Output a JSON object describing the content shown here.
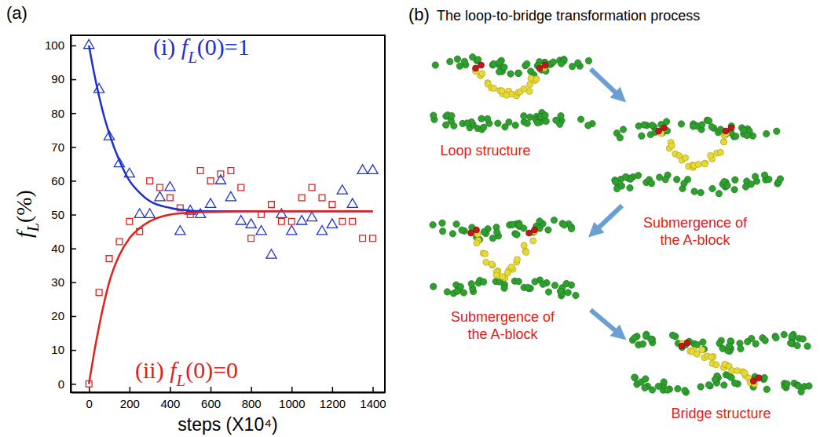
{
  "chart_data": {
    "type": "scatter",
    "panel_label": "(a)",
    "x_label": "steps (X10⁴)",
    "y_label": "fL(%)",
    "xlim": [
      -90,
      1460
    ],
    "xticks": [
      0,
      200,
      400,
      600,
      800,
      1000,
      1200,
      1400
    ],
    "ylim": [
      -2.5,
      103
    ],
    "yticks": [
      0,
      10,
      20,
      30,
      40,
      50,
      60,
      70,
      80,
      90,
      100
    ],
    "annotations": [
      {
        "text": "(i) fL(0)=1",
        "color": "#1f2fd0"
      },
      {
        "text": "(ii) fL(0)=0",
        "color": "#e0201b"
      }
    ],
    "series": [
      {
        "type": "scatter",
        "marker": "triangle",
        "color": "#2233cc",
        "x": [
          0,
          50,
          100,
          150,
          200,
          250,
          300,
          350,
          400,
          450,
          500,
          550,
          600,
          650,
          700,
          750,
          800,
          850,
          900,
          950,
          1000,
          1050,
          1100,
          1150,
          1200,
          1250,
          1300,
          1350,
          1400
        ],
        "values": [
          100,
          87,
          73,
          65,
          62,
          50,
          50,
          55,
          58,
          45,
          51,
          50,
          53,
          60,
          55,
          48,
          47,
          45,
          38,
          50,
          45,
          48,
          49,
          45,
          47,
          57,
          53,
          63,
          63
        ]
      },
      {
        "type": "scatter",
        "marker": "square",
        "color": "#dd2222",
        "x": [
          0,
          50,
          100,
          150,
          200,
          250,
          300,
          350,
          400,
          450,
          500,
          550,
          600,
          650,
          700,
          750,
          800,
          850,
          900,
          950,
          1000,
          1050,
          1100,
          1150,
          1200,
          1250,
          1300,
          1350,
          1400
        ],
        "values": [
          0,
          27,
          37,
          42,
          48,
          45,
          60,
          58,
          55,
          52,
          50,
          63,
          60,
          62,
          63,
          58,
          43,
          50,
          53,
          48,
          48,
          55,
          58,
          55,
          53,
          48,
          48,
          43,
          43
        ]
      },
      {
        "type": "line",
        "line_style": "solid",
        "color": "#1f2fd0",
        "x": [
          0,
          25,
          50,
          75,
          100,
          150,
          200,
          250,
          300,
          400,
          500,
          600,
          800,
          1000,
          1200,
          1400
        ],
        "values": [
          100,
          92,
          85,
          79,
          74,
          66,
          60,
          56.5,
          54,
          52,
          51.2,
          51,
          51,
          51,
          51,
          51
        ]
      },
      {
        "type": "line",
        "line_style": "solid",
        "color": "#e0201b",
        "x": [
          0,
          25,
          50,
          75,
          100,
          150,
          200,
          250,
          300,
          400,
          500,
          600,
          800,
          1000,
          1200,
          1400
        ],
        "values": [
          0,
          9,
          17,
          24,
          30,
          38,
          43,
          46,
          48,
          50,
          50.6,
          50.8,
          51,
          51,
          51,
          51
        ]
      }
    ]
  },
  "diagram": {
    "panel_label": "(b)",
    "title": "The loop-to-bridge transformation process",
    "steps": [
      "Loop structure",
      "Submergence of the A-block",
      "Submergence of the A-block",
      "Bridge structure"
    ]
  }
}
